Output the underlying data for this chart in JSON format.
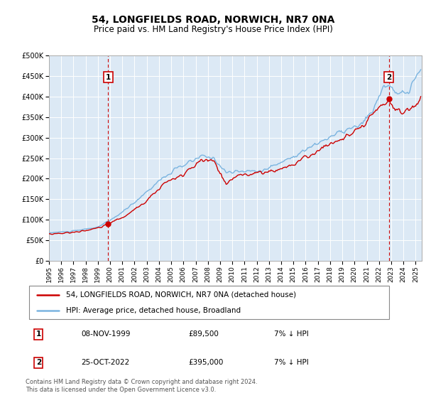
{
  "title": "54, LONGFIELDS ROAD, NORWICH, NR7 0NA",
  "subtitle": "Price paid vs. HM Land Registry's House Price Index (HPI)",
  "bg_color": "#dce9f5",
  "plot_bg_color": "#dce9f5",
  "fig_bg_color": "#ffffff",
  "grid_color": "#ffffff",
  "hpi_color": "#7ab4e0",
  "price_color": "#cc0000",
  "marker_color": "#cc0000",
  "vline_color": "#cc0000",
  "ylim": [
    0,
    500000
  ],
  "yticks": [
    0,
    50000,
    100000,
    150000,
    200000,
    250000,
    300000,
    350000,
    400000,
    450000,
    500000
  ],
  "ytick_labels": [
    "£0",
    "£50K",
    "£100K",
    "£150K",
    "£200K",
    "£250K",
    "£300K",
    "£350K",
    "£400K",
    "£450K",
    "£500K"
  ],
  "sale1_x": 1999.85,
  "sale1_y": 89500,
  "sale1_label": "1",
  "sale2_x": 2022.81,
  "sale2_y": 395000,
  "sale2_label": "2",
  "legend_entries": [
    "54, LONGFIELDS ROAD, NORWICH, NR7 0NA (detached house)",
    "HPI: Average price, detached house, Broadland"
  ],
  "table_rows": [
    [
      "1",
      "08-NOV-1999",
      "£89,500",
      "7% ↓ HPI"
    ],
    [
      "2",
      "25-OCT-2022",
      "£395,000",
      "7% ↓ HPI"
    ]
  ],
  "footnote": "Contains HM Land Registry data © Crown copyright and database right 2024.\nThis data is licensed under the Open Government Licence v3.0.",
  "xmin": 1995.0,
  "xmax": 2025.5,
  "xtick_years": [
    1995,
    1996,
    1997,
    1998,
    1999,
    2000,
    2001,
    2002,
    2003,
    2004,
    2005,
    2006,
    2007,
    2008,
    2009,
    2010,
    2011,
    2012,
    2013,
    2014,
    2015,
    2016,
    2017,
    2018,
    2019,
    2020,
    2021,
    2022,
    2023,
    2024,
    2025
  ]
}
